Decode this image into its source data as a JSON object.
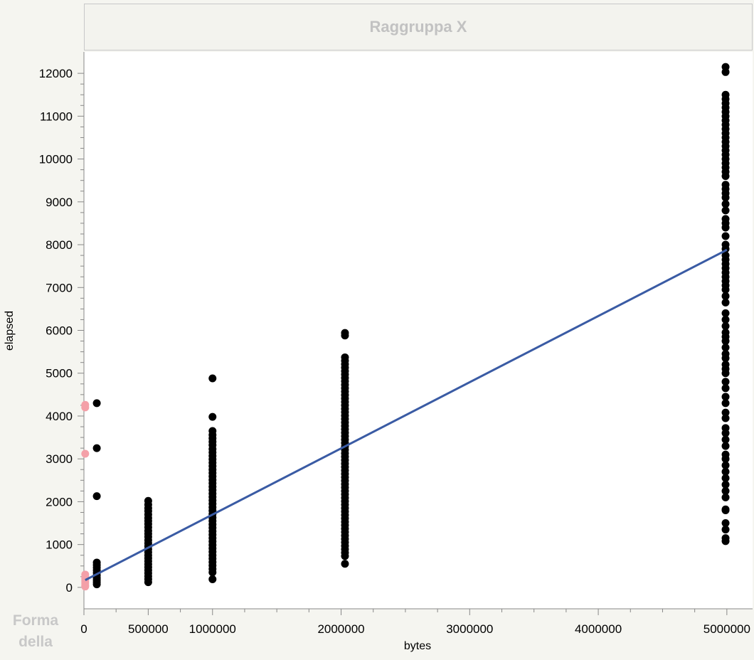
{
  "header": {
    "group_x_label": "Raggruppa X"
  },
  "footer": {
    "shape_label": "Forma della"
  },
  "chart_data": {
    "type": "scatter",
    "xlabel": "bytes",
    "ylabel": "elapsed",
    "xlim": [
      0,
      5200000
    ],
    "ylim": [
      -500,
      12500
    ],
    "x_ticks": [
      0,
      500000,
      1000000,
      2000000,
      3000000,
      4000000,
      5000000
    ],
    "x_tick_labels": [
      "0",
      "500000",
      "1000000",
      "2000000",
      "3000000",
      "4000000",
      "5000000"
    ],
    "y_ticks": [
      0,
      1000,
      2000,
      3000,
      4000,
      5000,
      6000,
      7000,
      8000,
      9000,
      10000,
      11000,
      12000
    ],
    "y_tick_labels": [
      "0",
      "1000",
      "2000",
      "3000",
      "4000",
      "5000",
      "6000",
      "7000",
      "8000",
      "9000",
      "10000",
      "11000",
      "12000"
    ],
    "colors": {
      "points": "#000000",
      "highlight": "#f4a0a8",
      "fit": "#3a5ba4"
    },
    "fit_line": {
      "x": [
        10000,
        5000000
      ],
      "y": [
        170,
        7880
      ]
    },
    "series": [
      {
        "color": "highlight",
        "points": [
          [
            10000,
            4260
          ],
          [
            10000,
            4200
          ],
          [
            10000,
            3120
          ],
          [
            10000,
            300
          ],
          [
            10000,
            240
          ],
          [
            10000,
            200
          ],
          [
            10000,
            150
          ],
          [
            10000,
            100
          ],
          [
            10000,
            50
          ],
          [
            10000,
            20
          ]
        ]
      },
      {
        "color": "points",
        "points": [
          [
            100000,
            4300
          ],
          [
            100000,
            3250
          ],
          [
            100000,
            2130
          ],
          [
            100000,
            580
          ],
          [
            100000,
            520
          ],
          [
            100000,
            460
          ],
          [
            100000,
            400
          ],
          [
            100000,
            340
          ],
          [
            100000,
            280
          ],
          [
            100000,
            220
          ],
          [
            100000,
            170
          ],
          [
            100000,
            120
          ],
          [
            100000,
            70
          ],
          [
            500000,
            2020
          ],
          [
            500000,
            1930
          ],
          [
            500000,
            1850
          ],
          [
            500000,
            1780
          ],
          [
            500000,
            1700
          ],
          [
            500000,
            1620
          ],
          [
            500000,
            1550
          ],
          [
            500000,
            1480
          ],
          [
            500000,
            1400
          ],
          [
            500000,
            1320
          ],
          [
            500000,
            1250
          ],
          [
            500000,
            1180
          ],
          [
            500000,
            1100
          ],
          [
            500000,
            1030
          ],
          [
            500000,
            960
          ],
          [
            500000,
            890
          ],
          [
            500000,
            820
          ],
          [
            500000,
            750
          ],
          [
            500000,
            680
          ],
          [
            500000,
            610
          ],
          [
            500000,
            540
          ],
          [
            500000,
            470
          ],
          [
            500000,
            400
          ],
          [
            500000,
            330
          ],
          [
            500000,
            260
          ],
          [
            500000,
            190
          ],
          [
            500000,
            120
          ],
          [
            1000000,
            4880
          ],
          [
            1000000,
            3980
          ],
          [
            1000000,
            3650
          ],
          [
            1000000,
            3560
          ],
          [
            1000000,
            3480
          ],
          [
            1000000,
            3400
          ],
          [
            1000000,
            3320
          ],
          [
            1000000,
            3230
          ],
          [
            1000000,
            3150
          ],
          [
            1000000,
            3070
          ],
          [
            1000000,
            2990
          ],
          [
            1000000,
            2910
          ],
          [
            1000000,
            2830
          ],
          [
            1000000,
            2750
          ],
          [
            1000000,
            2670
          ],
          [
            1000000,
            2590
          ],
          [
            1000000,
            2510
          ],
          [
            1000000,
            2430
          ],
          [
            1000000,
            2350
          ],
          [
            1000000,
            2270
          ],
          [
            1000000,
            2190
          ],
          [
            1000000,
            2110
          ],
          [
            1000000,
            2030
          ],
          [
            1000000,
            1950
          ],
          [
            1000000,
            1870
          ],
          [
            1000000,
            1790
          ],
          [
            1000000,
            1710
          ],
          [
            1000000,
            1630
          ],
          [
            1000000,
            1550
          ],
          [
            1000000,
            1470
          ],
          [
            1000000,
            1390
          ],
          [
            1000000,
            1310
          ],
          [
            1000000,
            1230
          ],
          [
            1000000,
            1150
          ],
          [
            1000000,
            1070
          ],
          [
            1000000,
            990
          ],
          [
            1000000,
            910
          ],
          [
            1000000,
            830
          ],
          [
            1000000,
            750
          ],
          [
            1000000,
            670
          ],
          [
            1000000,
            590
          ],
          [
            1000000,
            510
          ],
          [
            1000000,
            430
          ],
          [
            1000000,
            350
          ],
          [
            1000000,
            190
          ],
          [
            2030000,
            5940
          ],
          [
            2030000,
            5880
          ],
          [
            2030000,
            5370
          ],
          [
            2030000,
            5290
          ],
          [
            2030000,
            5210
          ],
          [
            2030000,
            5130
          ],
          [
            2030000,
            5050
          ],
          [
            2030000,
            4970
          ],
          [
            2030000,
            4890
          ],
          [
            2030000,
            4810
          ],
          [
            2030000,
            4730
          ],
          [
            2030000,
            4650
          ],
          [
            2030000,
            4570
          ],
          [
            2030000,
            4490
          ],
          [
            2030000,
            4410
          ],
          [
            2030000,
            4330
          ],
          [
            2030000,
            4250
          ],
          [
            2030000,
            4170
          ],
          [
            2030000,
            4090
          ],
          [
            2030000,
            4010
          ],
          [
            2030000,
            3930
          ],
          [
            2030000,
            3850
          ],
          [
            2030000,
            3770
          ],
          [
            2030000,
            3690
          ],
          [
            2030000,
            3610
          ],
          [
            2030000,
            3530
          ],
          [
            2030000,
            3450
          ],
          [
            2030000,
            3370
          ],
          [
            2030000,
            3290
          ],
          [
            2030000,
            3210
          ],
          [
            2030000,
            3130
          ],
          [
            2030000,
            3050
          ],
          [
            2030000,
            2970
          ],
          [
            2030000,
            2890
          ],
          [
            2030000,
            2810
          ],
          [
            2030000,
            2730
          ],
          [
            2030000,
            2650
          ],
          [
            2030000,
            2570
          ],
          [
            2030000,
            2490
          ],
          [
            2030000,
            2410
          ],
          [
            2030000,
            2330
          ],
          [
            2030000,
            2250
          ],
          [
            2030000,
            2170
          ],
          [
            2030000,
            2090
          ],
          [
            2030000,
            2010
          ],
          [
            2030000,
            1930
          ],
          [
            2030000,
            1850
          ],
          [
            2030000,
            1770
          ],
          [
            2030000,
            1690
          ],
          [
            2030000,
            1610
          ],
          [
            2030000,
            1530
          ],
          [
            2030000,
            1450
          ],
          [
            2030000,
            1370
          ],
          [
            2030000,
            1290
          ],
          [
            2030000,
            1210
          ],
          [
            2030000,
            1130
          ],
          [
            2030000,
            1050
          ],
          [
            2030000,
            970
          ],
          [
            2030000,
            890
          ],
          [
            2030000,
            810
          ],
          [
            2030000,
            730
          ],
          [
            2030000,
            550
          ],
          [
            4990000,
            12150
          ],
          [
            4990000,
            12030
          ],
          [
            4990000,
            11500
          ],
          [
            4990000,
            11400
          ],
          [
            4990000,
            11300
          ],
          [
            4990000,
            11200
          ],
          [
            4990000,
            11100
          ],
          [
            4990000,
            11000
          ],
          [
            4990000,
            10900
          ],
          [
            4990000,
            10800
          ],
          [
            4990000,
            10700
          ],
          [
            4990000,
            10600
          ],
          [
            4990000,
            10500
          ],
          [
            4990000,
            10400
          ],
          [
            4990000,
            10300
          ],
          [
            4990000,
            10200
          ],
          [
            4990000,
            10100
          ],
          [
            4990000,
            10000
          ],
          [
            4990000,
            9900
          ],
          [
            4990000,
            9800
          ],
          [
            4990000,
            9700
          ],
          [
            4990000,
            9600
          ],
          [
            4990000,
            9400
          ],
          [
            4990000,
            9300
          ],
          [
            4990000,
            9200
          ],
          [
            4990000,
            9100
          ],
          [
            4990000,
            8950
          ],
          [
            4990000,
            8800
          ],
          [
            4990000,
            8600
          ],
          [
            4990000,
            8500
          ],
          [
            4990000,
            8400
          ],
          [
            4990000,
            8200
          ],
          [
            4990000,
            8000
          ],
          [
            4990000,
            7900
          ],
          [
            4990000,
            7750
          ],
          [
            4990000,
            7650
          ],
          [
            4990000,
            7550
          ],
          [
            4990000,
            7450
          ],
          [
            4990000,
            7350
          ],
          [
            4990000,
            7250
          ],
          [
            4990000,
            7150
          ],
          [
            4990000,
            7050
          ],
          [
            4990000,
            6950
          ],
          [
            4990000,
            6800
          ],
          [
            4990000,
            6650
          ],
          [
            4990000,
            6400
          ],
          [
            4990000,
            6250
          ],
          [
            4990000,
            6100
          ],
          [
            4990000,
            5950
          ],
          [
            4990000,
            5850
          ],
          [
            4990000,
            5750
          ],
          [
            4990000,
            5600
          ],
          [
            4990000,
            5450
          ],
          [
            4990000,
            5350
          ],
          [
            4990000,
            5200
          ],
          [
            4990000,
            5100
          ],
          [
            4990000,
            5000
          ],
          [
            4990000,
            4800
          ],
          [
            4990000,
            4650
          ],
          [
            4990000,
            4450
          ],
          [
            4990000,
            4300
          ],
          [
            4990000,
            4080
          ],
          [
            4990000,
            3950
          ],
          [
            4990000,
            3720
          ],
          [
            4990000,
            3600
          ],
          [
            4990000,
            3450
          ],
          [
            4990000,
            3300
          ],
          [
            4990000,
            3100
          ],
          [
            4990000,
            3000
          ],
          [
            4990000,
            2850
          ],
          [
            4990000,
            2700
          ],
          [
            4990000,
            2550
          ],
          [
            4990000,
            2400
          ],
          [
            4990000,
            2250
          ],
          [
            4990000,
            2100
          ],
          [
            4990000,
            1820
          ],
          [
            4990000,
            1800
          ],
          [
            4990000,
            1500
          ],
          [
            4990000,
            1350
          ],
          [
            4990000,
            1150
          ],
          [
            4990000,
            1080
          ]
        ]
      }
    ]
  }
}
